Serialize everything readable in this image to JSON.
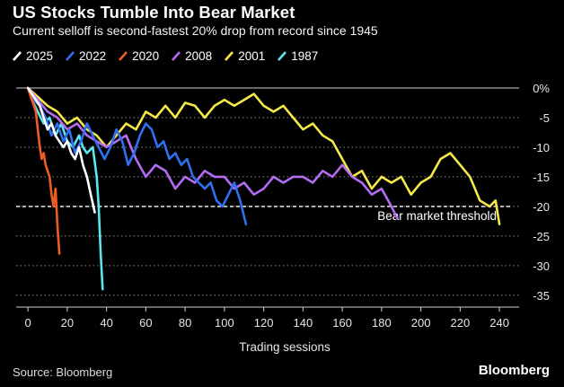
{
  "header": {
    "title": "US Stocks Tumble Into Bear Market",
    "subtitle": "Current selloff is second-fastest 20% drop from record since 1945"
  },
  "footer": {
    "source": "Source: Bloomberg",
    "brand": "Bloomberg"
  },
  "chart_data": {
    "type": "line",
    "xlabel": "Trading sessions",
    "ylabel": "",
    "xlim": [
      -6,
      250
    ],
    "ylim": [
      -37,
      0
    ],
    "x_ticks": [
      0,
      20,
      40,
      60,
      80,
      100,
      120,
      140,
      160,
      180,
      200,
      220,
      240
    ],
    "y_ticks": [
      0,
      -5,
      -10,
      -15,
      -20,
      -25,
      -30,
      -35
    ],
    "y_tick_labels": [
      "0%",
      "-5",
      "-10",
      "-15",
      "-20",
      "-25",
      "-30",
      "-35"
    ],
    "y_axis_side": "right",
    "grid": "dotted horizontal",
    "legend_position": "top-left",
    "threshold": {
      "y": -20,
      "label": "Bear market threshold",
      "color": "#ffffff"
    },
    "series": [
      {
        "name": "1987",
        "color": "#5ce6f0",
        "x": [
          0,
          2,
          5,
          8,
          11,
          14,
          17,
          20,
          23,
          26,
          28,
          30,
          33,
          35,
          36,
          37,
          38
        ],
        "y": [
          0,
          -2,
          -4,
          -6,
          -5,
          -8,
          -6,
          -9,
          -10,
          -8,
          -10,
          -11,
          -10,
          -15,
          -20,
          -28,
          -34
        ]
      },
      {
        "name": "2001",
        "color": "#f5e94a",
        "x": [
          0,
          5,
          10,
          15,
          20,
          25,
          30,
          35,
          40,
          45,
          50,
          55,
          60,
          65,
          70,
          75,
          80,
          85,
          90,
          95,
          100,
          105,
          110,
          115,
          120,
          125,
          130,
          135,
          140,
          145,
          150,
          155,
          160,
          165,
          170,
          175,
          180,
          185,
          190,
          195,
          200,
          205,
          210,
          215,
          220,
          225,
          230,
          235,
          238,
          240
        ],
        "y": [
          0,
          -1.5,
          -3,
          -4,
          -6,
          -5,
          -7,
          -8,
          -10,
          -8,
          -6,
          -7,
          -4,
          -5,
          -3,
          -5,
          -2.5,
          -3,
          -5,
          -3,
          -2,
          -3,
          -2,
          -1,
          -3,
          -4,
          -3,
          -5,
          -7,
          -6,
          -8,
          -9,
          -12,
          -15,
          -14,
          -17,
          -15,
          -16,
          -15,
          -18,
          -16,
          -15,
          -12,
          -11,
          -13,
          -15,
          -19,
          -20,
          -19,
          -23
        ]
      },
      {
        "name": "2008",
        "color": "#b36cf2",
        "x": [
          0,
          5,
          10,
          15,
          20,
          25,
          30,
          35,
          40,
          45,
          50,
          55,
          60,
          65,
          70,
          75,
          80,
          85,
          90,
          95,
          100,
          105,
          110,
          115,
          120,
          125,
          130,
          135,
          140,
          145,
          150,
          155,
          160,
          165,
          170,
          175,
          180,
          185,
          188
        ],
        "y": [
          0,
          -2,
          -4,
          -5,
          -7,
          -6,
          -8,
          -9,
          -10,
          -9,
          -8,
          -12,
          -15,
          -13,
          -14,
          -17,
          -15,
          -16,
          -14,
          -15,
          -15,
          -17,
          -16,
          -18,
          -17,
          -15,
          -16,
          -15,
          -15,
          -16,
          -14,
          -15,
          -13,
          -15,
          -16,
          -18,
          -17,
          -20,
          -22
        ]
      },
      {
        "name": "2022",
        "color": "#3070f0",
        "x": [
          0,
          3,
          6,
          9,
          12,
          15,
          18,
          21,
          24,
          27,
          30,
          33,
          36,
          39,
          42,
          45,
          48,
          51,
          54,
          57,
          60,
          63,
          66,
          69,
          72,
          75,
          78,
          81,
          84,
          87,
          90,
          93,
          96,
          99,
          102,
          105,
          108,
          111
        ],
        "y": [
          0,
          -2,
          -3,
          -5,
          -8,
          -6,
          -9,
          -7,
          -11,
          -9,
          -6,
          -8,
          -10,
          -12,
          -10,
          -7,
          -9,
          -13,
          -11,
          -8,
          -6,
          -7,
          -10,
          -9,
          -12,
          -11,
          -13,
          -12,
          -15,
          -16,
          -17,
          -16,
          -19,
          -20,
          -18,
          -16,
          -19,
          -23
        ]
      },
      {
        "name": "2020",
        "color": "#f05a23",
        "x": [
          0,
          2,
          4,
          5,
          6,
          7,
          8,
          9,
          10,
          11,
          12,
          13,
          14,
          15,
          16
        ],
        "y": [
          0,
          -2,
          -4,
          -7,
          -10,
          -12,
          -11,
          -13,
          -14,
          -15,
          -18,
          -20,
          -17,
          -23,
          -28
        ]
      },
      {
        "name": "2025",
        "color": "#ffffff",
        "x": [
          0,
          2,
          4,
          6,
          8,
          10,
          12,
          14,
          16,
          18,
          20,
          22,
          24,
          26,
          28,
          30,
          32,
          34
        ],
        "y": [
          0,
          -1,
          -2,
          -3,
          -5,
          -7,
          -6,
          -8,
          -9,
          -10,
          -9,
          -11,
          -12,
          -10,
          -13,
          -15,
          -18,
          -21
        ]
      }
    ]
  },
  "legend": [
    {
      "label": "2025",
      "color": "#ffffff"
    },
    {
      "label": "2022",
      "color": "#3070f0"
    },
    {
      "label": "2020",
      "color": "#f05a23"
    },
    {
      "label": "2008",
      "color": "#b36cf2"
    },
    {
      "label": "2001",
      "color": "#f5e94a"
    },
    {
      "label": "1987",
      "color": "#5ce6f0"
    }
  ]
}
